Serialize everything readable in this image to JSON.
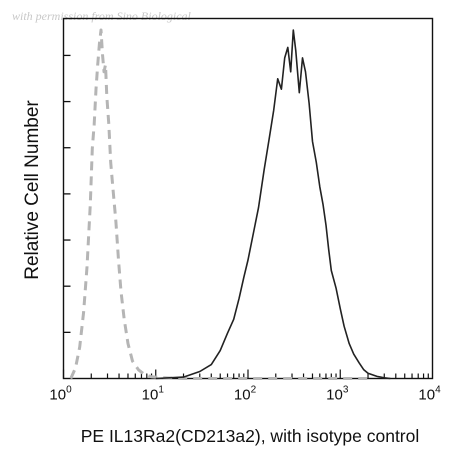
{
  "watermark": "with permission from Sino Biological",
  "chart_data": {
    "type": "line",
    "title": "",
    "xlabel": "PE IL13Ra2(CD213a2), with isotype control",
    "ylabel": "Relative Cell Number",
    "x_scale": "log",
    "xlim": [
      1,
      10000
    ],
    "ylim": [
      0,
      1
    ],
    "grid": false,
    "x_ticks": [
      {
        "base": "10",
        "exp": "0",
        "value": 1
      },
      {
        "base": "10",
        "exp": "1",
        "value": 10
      },
      {
        "base": "10",
        "exp": "2",
        "value": 100
      },
      {
        "base": "10",
        "exp": "3",
        "value": 1000
      },
      {
        "base": "10",
        "exp": "4",
        "value": 10000
      }
    ],
    "series": [
      {
        "name": "",
        "color": "#b5b5b5",
        "style": "dashed",
        "x": [
          1.2,
          1.35,
          1.5,
          1.65,
          1.8,
          1.95,
          2.05,
          2.15,
          2.25,
          2.35,
          2.45,
          2.55,
          2.65,
          2.75,
          2.85,
          2.95,
          3.1,
          3.25,
          3.45,
          3.7,
          3.95,
          4.2,
          4.55,
          5.0,
          5.6,
          6.5,
          7.5,
          9.0,
          12.0,
          20.0,
          50.0,
          200.0,
          1000.0,
          2000.0
        ],
        "y": [
          0.0,
          0.03,
          0.09,
          0.19,
          0.32,
          0.5,
          0.66,
          0.73,
          0.83,
          0.9,
          0.96,
          1.0,
          0.93,
          0.88,
          0.9,
          0.81,
          0.73,
          0.62,
          0.54,
          0.45,
          0.34,
          0.25,
          0.17,
          0.1,
          0.05,
          0.025,
          0.012,
          0.005,
          0.002,
          0.0,
          0.0,
          0.0,
          0.0,
          0.0
        ]
      },
      {
        "name": "",
        "color": "#222222",
        "style": "solid",
        "x": [
          10,
          20,
          30,
          40,
          50,
          60,
          70,
          80,
          90,
          100,
          115,
          130,
          150,
          170,
          190,
          210,
          230,
          250,
          270,
          290,
          310,
          330,
          360,
          390,
          420,
          460,
          500,
          550,
          600,
          650,
          700,
          750,
          800,
          900,
          1000,
          1100,
          1250,
          1400,
          1600,
          1800,
          2000,
          2500,
          3000,
          3500
        ],
        "y": [
          0.0,
          0.004,
          0.02,
          0.04,
          0.08,
          0.13,
          0.17,
          0.23,
          0.29,
          0.34,
          0.42,
          0.49,
          0.6,
          0.69,
          0.77,
          0.86,
          0.83,
          0.92,
          0.95,
          0.88,
          1.0,
          0.94,
          0.82,
          0.92,
          0.88,
          0.79,
          0.68,
          0.62,
          0.55,
          0.5,
          0.44,
          0.37,
          0.31,
          0.26,
          0.2,
          0.15,
          0.1,
          0.07,
          0.045,
          0.025,
          0.015,
          0.006,
          0.002,
          0.0
        ]
      }
    ]
  }
}
